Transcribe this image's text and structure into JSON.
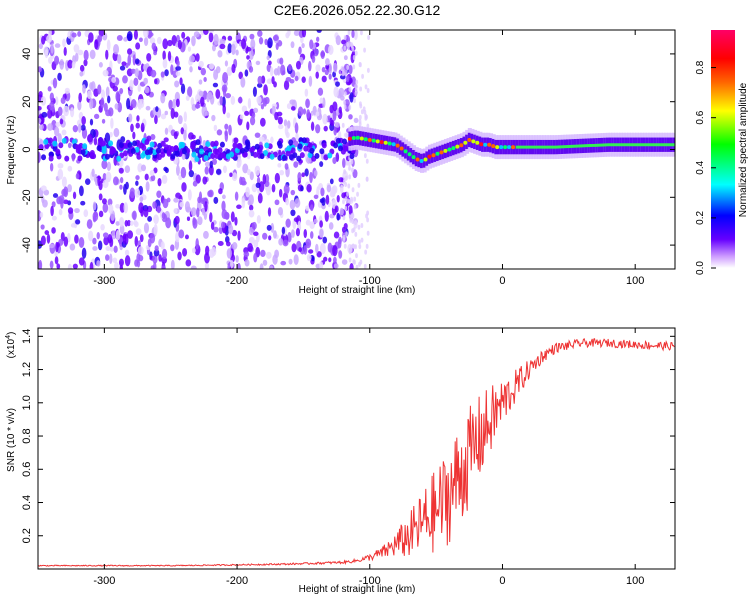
{
  "figure": {
    "title": "C2E6.2026.052.22.30.G12"
  },
  "chart_data": [
    {
      "type": "heatmap",
      "title": "C2E6.2026.052.22.30.G12",
      "xlabel": "Height of straight line (km)",
      "ylabel": "Frequency (Hz)",
      "xlim": [
        -350,
        130
      ],
      "ylim": [
        -50,
        50
      ],
      "xticks": [
        -300,
        -200,
        -100,
        0,
        100
      ],
      "yticks": [
        -40,
        -20,
        0,
        20,
        40
      ],
      "colorbar": {
        "label": "Normalized spectral amplitude",
        "range": [
          0.0,
          0.95
        ],
        "ticks": [
          0.0,
          0.2,
          0.4,
          0.6,
          0.8
        ],
        "colormap": [
          "#ffffff",
          "#cc99ff",
          "#6600ff",
          "#0000ff",
          "#00ffff",
          "#00ff00",
          "#ffff00",
          "#ff6600",
          "#ff0000",
          "#ff0066"
        ]
      },
      "ridge_frequency": {
        "x": [
          -120,
          -110,
          -100,
          -90,
          -80,
          -75,
          -70,
          -65,
          -60,
          -55,
          -50,
          -45,
          -40,
          -35,
          -30,
          -25,
          -20,
          -15,
          -10,
          -5,
          0,
          20,
          40,
          60,
          80,
          100,
          130
        ],
        "y": [
          4,
          5,
          4,
          3,
          2,
          0,
          -2,
          -4,
          -5,
          -3,
          -2,
          -1,
          0,
          1,
          2,
          4,
          3,
          2,
          2,
          1,
          1,
          1,
          1,
          1.5,
          2,
          2,
          2
        ]
      },
      "noise_region_km": [
        -350,
        -110
      ]
    },
    {
      "type": "line",
      "xlabel": "Height of straight line (km)",
      "ylabel": "SNR (10 * v/v)",
      "exponent_label": "(x10",
      "exponent_value": "4",
      "exponent_close": ")",
      "xlim": [
        -350,
        130
      ],
      "ylim": [
        0,
        1.45
      ],
      "xticks": [
        -300,
        -200,
        -100,
        0,
        100
      ],
      "yticks": [
        0.2,
        0.4,
        0.6,
        0.8,
        1.0,
        1.2,
        1.4
      ],
      "color": "#ee3333",
      "series": [
        {
          "name": "SNR",
          "x": [
            -350,
            -300,
            -250,
            -200,
            -160,
            -140,
            -120,
            -110,
            -100,
            -90,
            -80,
            -70,
            -60,
            -50,
            -40,
            -30,
            -20,
            -10,
            0,
            10,
            20,
            30,
            40,
            60,
            80,
            100,
            130
          ],
          "values": [
            0.02,
            0.02,
            0.02,
            0.025,
            0.03,
            0.035,
            0.04,
            0.05,
            0.07,
            0.1,
            0.15,
            0.2,
            0.28,
            0.35,
            0.45,
            0.6,
            0.75,
            0.88,
            1.0,
            1.1,
            1.2,
            1.28,
            1.33,
            1.36,
            1.36,
            1.35,
            1.34
          ],
          "noise_amplitude": [
            0.003,
            0.003,
            0.003,
            0.004,
            0.005,
            0.006,
            0.008,
            0.01,
            0.02,
            0.04,
            0.08,
            0.14,
            0.2,
            0.26,
            0.3,
            0.32,
            0.28,
            0.22,
            0.15,
            0.1,
            0.06,
            0.04,
            0.03,
            0.025,
            0.025,
            0.025,
            0.025
          ]
        }
      ]
    }
  ]
}
